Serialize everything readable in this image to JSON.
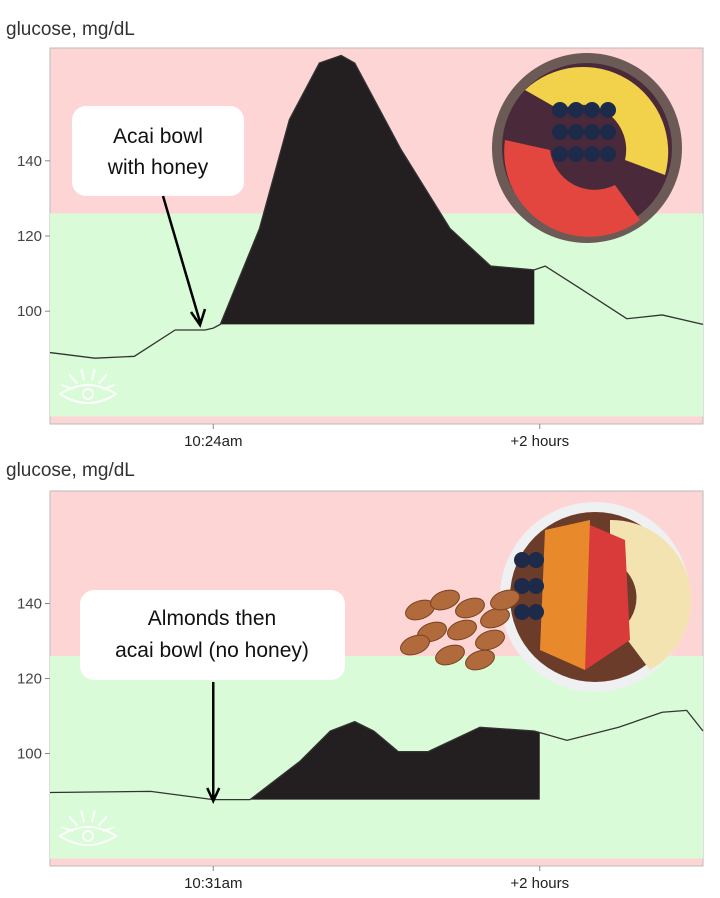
{
  "chart_data": [
    {
      "type": "line",
      "ylabel": "glucose, mg/dL",
      "ylim": [
        70,
        170
      ],
      "xlim": [
        -60,
        180
      ],
      "yticks": [
        100,
        120,
        140
      ],
      "xticks": [
        {
          "x": 0,
          "label": "10:24am"
        },
        {
          "x": 120,
          "label": "+2 hours"
        }
      ],
      "in_range_band": [
        72,
        126
      ],
      "annotation": {
        "lines": [
          "Acai bowl",
          "with honey"
        ],
        "x": 0
      },
      "fill": {
        "from": 2.6,
        "to": 118,
        "baseline": 96.5
      },
      "series": [
        {
          "name": "glucose",
          "x": [
            -60,
            -43.5,
            -29,
            -14,
            -3,
            0,
            2.6,
            17,
            28,
            39,
            47,
            52,
            69,
            87,
            102,
            118,
            122,
            135,
            152,
            165,
            180
          ],
          "y": [
            89,
            87.5,
            88,
            95,
            95,
            95.5,
            96.5,
            122,
            151,
            166,
            168,
            166,
            143,
            122,
            112,
            111,
            112,
            106,
            98,
            99,
            96.5
          ]
        }
      ],
      "image": "acai-bowl-with-fruit"
    },
    {
      "type": "line",
      "ylabel": "glucose, mg/dL",
      "ylim": [
        70,
        170
      ],
      "xlim": [
        -60,
        180
      ],
      "yticks": [
        100,
        120,
        140
      ],
      "xticks": [
        {
          "x": 0,
          "label": "10:31am"
        },
        {
          "x": 120,
          "label": "+2 hours"
        }
      ],
      "in_range_band": [
        72,
        126
      ],
      "annotation": {
        "lines": [
          "Almonds then",
          "acai bowl (no honey)"
        ],
        "x": 0
      },
      "fill": {
        "from": 13.5,
        "to": 120,
        "baseline": 87.7
      },
      "series": [
        {
          "name": "glucose",
          "x": [
            -60,
            -23,
            0,
            13.5,
            32,
            43,
            52,
            59,
            68,
            79,
            98,
            118,
            130,
            149,
            165,
            174,
            180
          ],
          "y": [
            89.6,
            89.9,
            87.7,
            87.7,
            98,
            106,
            108.5,
            106,
            100.5,
            100.5,
            107,
            106,
            103.5,
            107,
            111,
            111.5,
            106
          ]
        }
      ],
      "image": "almonds-and-acai-bowl"
    }
  ],
  "colors": {
    "high": "#fdd5d5",
    "range": "#d9fbd7",
    "fill": "#231f20",
    "line": "#333333"
  }
}
